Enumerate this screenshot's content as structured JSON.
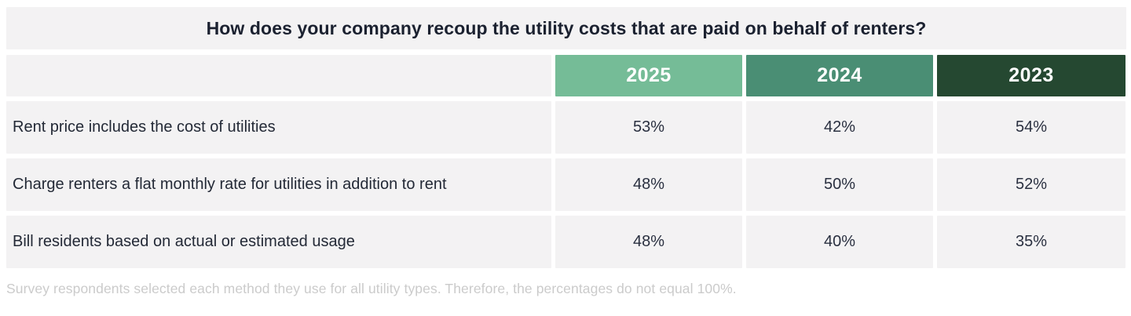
{
  "title": "How does your company recoup the utility costs that are paid on behalf of renters?",
  "footnote": "Survey respondents selected each method they use for all utility types. Therefore, the percentages do not equal 100%.",
  "colors": {
    "cell_background": "#f3f2f3",
    "year_2025": "#75bc97",
    "year_2024": "#4a8e74",
    "year_2023": "#254831",
    "title_text": "#1b2130",
    "body_text": "#232936",
    "footnote_text": "#cbcbcb"
  },
  "chart_data": {
    "type": "table",
    "title": "How does your company recoup the utility costs that are paid on behalf of renters?",
    "columns": [
      "2025",
      "2024",
      "2023"
    ],
    "rows": [
      {
        "label": "Rent price includes the cost of utilities",
        "values": [
          "53%",
          "42%",
          "54%"
        ]
      },
      {
        "label": "Charge renters a flat monthly rate for utilities in addition to rent",
        "values": [
          "48%",
          "50%",
          "52%"
        ]
      },
      {
        "label": "Bill residents based on actual or estimated usage",
        "values": [
          "48%",
          "40%",
          "35%"
        ]
      }
    ],
    "layout": {
      "header_style": "colored year chips, white bold text",
      "note": "percentages per year column; rows are recoup methods"
    }
  }
}
